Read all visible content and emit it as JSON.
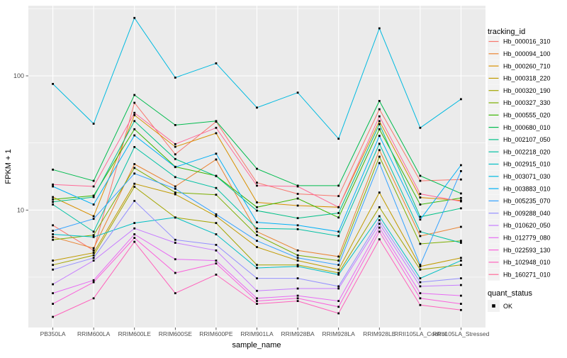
{
  "chart_data": {
    "type": "line",
    "title": "",
    "xlabel": "sample_name",
    "ylabel": "FPKM + 1",
    "y_scale": "log10",
    "y_ticks": [
      10,
      100
    ],
    "y_minor_ticks": [
      3.1623,
      31.623,
      316.23
    ],
    "ylim": [
      1.3,
      350
    ],
    "grid": true,
    "legend_position": "right",
    "point_shape": "filled-black-square",
    "categories": [
      "PB350LA",
      "RRIM600LA",
      "RRIM600LE",
      "RRIM600SE",
      "RRIM600PE",
      "RRIM901LA",
      "RRIM928BA",
      "RRIM928LA",
      "RRIM928LE",
      "RRII105LA_Control",
      "RRII105LA_Stressed"
    ],
    "series": [
      {
        "name": "Hb_000016_310",
        "color": "#F8766D",
        "values": [
          7.7,
          5.0,
          63,
          26,
          45.6,
          16,
          13.2,
          12.7,
          56.4,
          16.5,
          16.9
        ]
      },
      {
        "name": "Hb_000094_100",
        "color": "#EA8331",
        "values": [
          6.3,
          5.2,
          22,
          15,
          23.8,
          6.9,
          5.0,
          4.5,
          28,
          6.4,
          7.5
        ]
      },
      {
        "name": "Hb_000260_710",
        "color": "#D89000",
        "values": [
          12.5,
          9.0,
          51,
          29.6,
          37.4,
          11.4,
          10.8,
          10.5,
          46,
          12.4,
          11.8
        ]
      },
      {
        "name": "Hb_000318_220",
        "color": "#C09B00",
        "values": [
          4.2,
          4.8,
          15.7,
          13.1,
          9.0,
          5.3,
          4.2,
          3.6,
          13.5,
          3.8,
          4.4
        ]
      },
      {
        "name": "Hb_000320_190",
        "color": "#A3A500",
        "values": [
          3.9,
          4.6,
          14.9,
          8.8,
          8.0,
          3.9,
          3.9,
          3.4,
          10.5,
          3.6,
          3.9
        ]
      },
      {
        "name": "Hb_000327_330",
        "color": "#7CAE00",
        "values": [
          6.0,
          6.5,
          20.6,
          13.5,
          13.0,
          6.5,
          4.6,
          4.2,
          25,
          5.6,
          5.9
        ]
      },
      {
        "name": "Hb_000555_020",
        "color": "#39B600",
        "values": [
          12,
          12.8,
          40,
          21,
          18,
          10.5,
          12.2,
          8.8,
          40,
          11,
          12.3
        ]
      },
      {
        "name": "Hb_000680_010",
        "color": "#00BB4E",
        "values": [
          20,
          16.5,
          72,
          43,
          46,
          20.3,
          15.2,
          15.2,
          65,
          18,
          13.3
        ]
      },
      {
        "name": "Hb_002107_050",
        "color": "#00C087",
        "values": [
          11.5,
          12.5,
          46,
          24,
          17.9,
          9.9,
          8.7,
          9.5,
          43.7,
          8.9,
          10.3
        ]
      },
      {
        "name": "Hb_002218_020",
        "color": "#00C1A3",
        "values": [
          11,
          6.9,
          29.5,
          17.6,
          14.6,
          7.3,
          7.2,
          6.4,
          31.2,
          6.9,
          5.7
        ]
      },
      {
        "name": "Hb_002915_010",
        "color": "#00BFC4",
        "values": [
          6.6,
          6.3,
          8.0,
          8.8,
          6.6,
          3.7,
          3.8,
          3.3,
          9.0,
          3.1,
          4.2
        ]
      },
      {
        "name": "Hb_003071_030",
        "color": "#00BAE0",
        "values": [
          87,
          44,
          270,
          97,
          124,
          58,
          75,
          34,
          226,
          41,
          67
        ]
      },
      {
        "name": "Hb_003883_010",
        "color": "#00B0F6",
        "values": [
          15,
          11,
          36,
          20.9,
          26.3,
          8.1,
          7.7,
          6.9,
          35.7,
          8.5,
          21.6
        ]
      },
      {
        "name": "Hb_005235_070",
        "color": "#35A2FF",
        "values": [
          7.0,
          8.6,
          18.7,
          14.4,
          9.3,
          5.9,
          4.4,
          3.9,
          22.4,
          3.9,
          19.5
        ]
      },
      {
        "name": "Hb_009288_040",
        "color": "#9590FF",
        "values": [
          3.6,
          4.4,
          11.7,
          6.0,
          5.5,
          3.1,
          3.1,
          2.7,
          8.4,
          2.9,
          3.1
        ]
      },
      {
        "name": "Hb_010620_050",
        "color": "#C77CFF",
        "values": [
          2.8,
          4.2,
          7.3,
          5.7,
          5.0,
          2.5,
          2.6,
          2.6,
          7.9,
          2.7,
          2.76
        ]
      },
      {
        "name": "Hb_012779_080",
        "color": "#E76BF3",
        "values": [
          2.4,
          3.0,
          6.6,
          4.3,
          4.2,
          2.2,
          2.3,
          2.1,
          7.4,
          2.4,
          2.3
        ]
      },
      {
        "name": "Hb_022593_130",
        "color": "#FA62DB",
        "values": [
          2.0,
          2.9,
          6.2,
          3.4,
          4.0,
          2.1,
          2.2,
          1.9,
          6.9,
          2.2,
          2.0
        ]
      },
      {
        "name": "Hb_102948_010",
        "color": "#FF62BC",
        "values": [
          1.6,
          2.2,
          5.8,
          2.4,
          3.3,
          2.0,
          2.1,
          1.7,
          6.05,
          1.96,
          1.8
        ]
      },
      {
        "name": "Hb_160271_010",
        "color": "#FF6A98",
        "values": [
          15.5,
          15,
          53,
          31,
          41,
          15.2,
          15,
          10.5,
          49.9,
          13.2,
          11.6
        ]
      }
    ]
  },
  "legend": {
    "tracking_title": "tracking_id",
    "quant_title": "quant_status",
    "quant_items": [
      {
        "label": "OK"
      }
    ]
  },
  "style": {
    "panel_bg": "#EBEBEB",
    "grid_color": "#FFFFFF",
    "axis_text_color": "#4D4D4D",
    "tick_color": "#333333",
    "title_color": "#000000",
    "legend_key_bg": "#F2F2F2",
    "point_color": "#000000"
  }
}
